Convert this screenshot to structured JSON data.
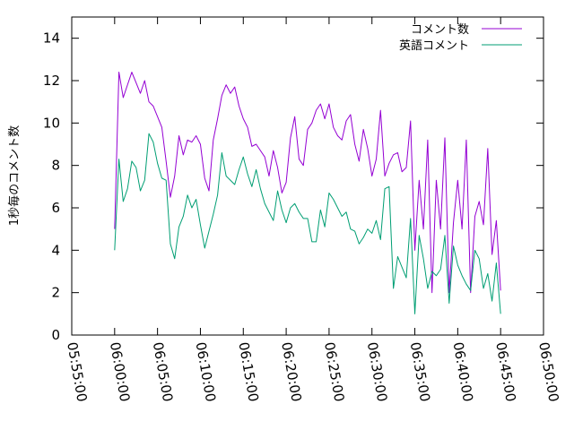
{
  "chart_data": {
    "type": "line",
    "ylabel": "1秒毎のコメント数",
    "ylim": [
      0,
      15
    ],
    "yticks": [
      0,
      2,
      4,
      6,
      8,
      10,
      12,
      14
    ],
    "xlim": [
      "05:55:00",
      "06:50:00"
    ],
    "xticks": [
      "05:55:00",
      "06:00:00",
      "06:05:00",
      "06:10:00",
      "06:15:00",
      "06:20:00",
      "06:25:00",
      "06:30:00",
      "06:35:00",
      "06:40:00",
      "06:45:00",
      "06:50:00"
    ],
    "legend_position": "top-right",
    "grid": false,
    "x": [
      "06:00:00",
      "06:00:30",
      "06:01:00",
      "06:01:30",
      "06:02:00",
      "06:02:30",
      "06:03:00",
      "06:03:30",
      "06:04:00",
      "06:04:30",
      "06:05:00",
      "06:05:30",
      "06:06:00",
      "06:06:30",
      "06:07:00",
      "06:07:30",
      "06:08:00",
      "06:08:30",
      "06:09:00",
      "06:09:30",
      "06:10:00",
      "06:10:30",
      "06:11:00",
      "06:11:30",
      "06:12:00",
      "06:12:30",
      "06:13:00",
      "06:13:30",
      "06:14:00",
      "06:14:30",
      "06:15:00",
      "06:15:30",
      "06:16:00",
      "06:16:30",
      "06:17:00",
      "06:17:30",
      "06:18:00",
      "06:18:30",
      "06:19:00",
      "06:19:30",
      "06:20:00",
      "06:20:30",
      "06:21:00",
      "06:21:30",
      "06:22:00",
      "06:22:30",
      "06:23:00",
      "06:23:30",
      "06:24:00",
      "06:24:30",
      "06:25:00",
      "06:25:30",
      "06:26:00",
      "06:26:30",
      "06:27:00",
      "06:27:30",
      "06:28:00",
      "06:28:30",
      "06:29:00",
      "06:29:30",
      "06:30:00",
      "06:30:30",
      "06:31:00",
      "06:31:30",
      "06:32:00",
      "06:32:30",
      "06:33:00",
      "06:33:30",
      "06:34:00",
      "06:34:30",
      "06:35:00",
      "06:35:30",
      "06:36:00",
      "06:36:30",
      "06:37:00",
      "06:37:30",
      "06:38:00",
      "06:38:30",
      "06:39:00",
      "06:39:30",
      "06:40:00",
      "06:40:30",
      "06:41:00",
      "06:41:30",
      "06:42:00",
      "06:42:30",
      "06:43:00",
      "06:43:30",
      "06:44:00",
      "06:44:30",
      "06:45:00"
    ],
    "series": [
      {
        "name": "コメント数",
        "color": "#9400d3",
        "values": [
          5.0,
          12.4,
          11.2,
          11.8,
          12.4,
          11.9,
          11.4,
          12.0,
          11.0,
          10.8,
          10.3,
          9.8,
          8.2,
          6.5,
          7.5,
          9.4,
          8.5,
          9.2,
          9.1,
          9.4,
          9.0,
          7.4,
          6.8,
          9.2,
          10.2,
          11.3,
          11.8,
          11.4,
          11.7,
          10.8,
          10.2,
          9.8,
          8.9,
          9.0,
          8.7,
          8.4,
          7.5,
          8.7,
          7.9,
          6.7,
          7.2,
          9.3,
          10.3,
          8.3,
          8.0,
          9.7,
          10.0,
          10.6,
          10.9,
          10.2,
          10.9,
          9.8,
          9.4,
          9.2,
          10.1,
          10.4,
          9.0,
          8.2,
          9.7,
          8.8,
          7.5,
          8.3,
          10.6,
          7.5,
          8.1,
          8.5,
          8.6,
          7.7,
          7.9,
          10.1,
          4.0,
          7.3,
          5.0,
          9.2,
          2.0,
          7.3,
          5.0,
          9.3,
          2.0,
          5.3,
          7.3,
          5.0,
          9.2,
          2.0,
          5.6,
          6.3,
          5.2,
          8.8,
          3.8,
          5.4,
          2.1
        ],
        "values_note": ""
      },
      {
        "name": "英語コメント",
        "color": "#009e73",
        "values": [
          4.0,
          8.3,
          6.3,
          6.9,
          8.2,
          7.9,
          6.8,
          7.3,
          9.5,
          9.1,
          8.1,
          7.4,
          7.3,
          4.3,
          3.6,
          5.1,
          5.6,
          6.6,
          6.0,
          6.4,
          5.2,
          4.1,
          4.9,
          5.7,
          6.6,
          8.6,
          7.5,
          7.3,
          7.1,
          7.8,
          8.4,
          7.6,
          7.0,
          7.8,
          6.9,
          6.2,
          5.8,
          5.4,
          6.8,
          5.9,
          5.3,
          6.0,
          6.2,
          5.8,
          5.5,
          5.5,
          4.4,
          4.4,
          5.9,
          5.1,
          6.7,
          6.4,
          6.0,
          5.6,
          5.8,
          5.0,
          4.9,
          4.3,
          4.6,
          5.0,
          4.8,
          5.4,
          4.5,
          6.9,
          7.0,
          2.2,
          3.7,
          3.2,
          2.7,
          5.5,
          1.0,
          4.7,
          3.6,
          2.2,
          3.0,
          2.8,
          3.1,
          4.7,
          1.5,
          4.2,
          3.3,
          2.8,
          2.4,
          2.1,
          4.0,
          3.6,
          2.2,
          2.9,
          1.6,
          3.4,
          1.0
        ]
      }
    ]
  }
}
